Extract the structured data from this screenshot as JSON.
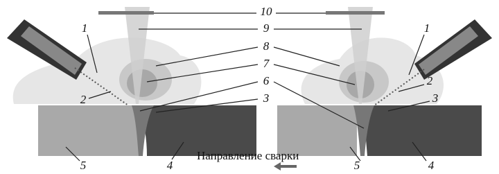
{
  "center_labels": [
    "10",
    "9",
    "8",
    "7",
    "6",
    "3"
  ],
  "left_labels": [
    "1",
    "2",
    "5",
    "4"
  ],
  "right_labels": [
    "1",
    "2",
    "3",
    "5",
    "4"
  ],
  "direction": "Направление сварки"
}
